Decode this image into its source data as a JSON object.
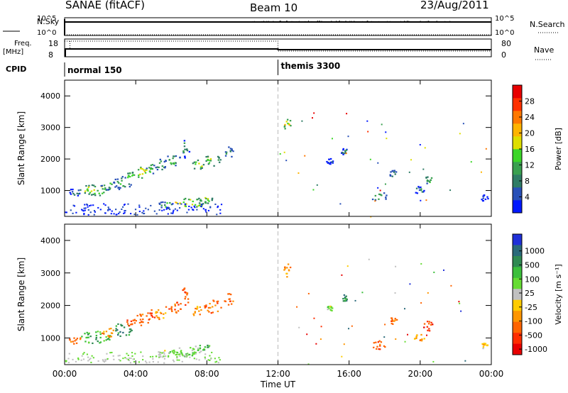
{
  "header": {
    "radar": "SANAE (fitACF)",
    "beam": "Beam 10",
    "date": "23/Aug/2011"
  },
  "strips": {
    "nsky_label": "N.Sky",
    "nsearch_label": "N.Search",
    "freq_label_line1": "Freq.",
    "freq_label_line2": "[MHz]",
    "nave_label": "Nave",
    "cpid_label": "CPID",
    "noise_ticks": [
      "10^5",
      "10^0"
    ],
    "freq_ticks": [
      "18",
      "8"
    ],
    "nave_ticks": [
      "80",
      "0"
    ],
    "cpid_segments": [
      {
        "name": "normal 150",
        "start_hour": 0
      },
      {
        "name": "themis 3300",
        "start_hour": 12
      }
    ]
  },
  "chart_data": [
    {
      "type": "heatmap",
      "name": "power",
      "ylabel": "Slant Range [km]",
      "xlabel": "",
      "xlim": [
        0,
        24
      ],
      "ylim": [
        180,
        4500
      ],
      "x_ticks": [
        "00:00",
        "04:00",
        "08:00",
        "12:00",
        "16:00",
        "20:00",
        "00:00"
      ],
      "y_ticks": [
        1000,
        2000,
        3000,
        4000
      ],
      "colorbar": {
        "label": "Power [dB]",
        "ticks": [
          "4",
          "8",
          "12",
          "16",
          "20",
          "24",
          "28"
        ],
        "colors": [
          "#0018ff",
          "#2850b8",
          "#2f7c66",
          "#3aa050",
          "#3cd628",
          "#dede00",
          "#ffb400",
          "#ff7800",
          "#ff3000",
          "#e80000"
        ]
      },
      "patches": [
        {
          "x": 0.55,
          "y": 970,
          "wx": 0.35,
          "wy": 130,
          "level": 2
        },
        {
          "x": 1.7,
          "y": 1040,
          "wx": 0.9,
          "wy": 190,
          "level": 4
        },
        {
          "x": 2.45,
          "y": 1180,
          "wx": 0.45,
          "wy": 160,
          "level": 3
        },
        {
          "x": 3.2,
          "y": 1260,
          "wx": 0.55,
          "wy": 210,
          "level": 3
        },
        {
          "x": 3.7,
          "y": 1480,
          "wx": 0.35,
          "wy": 130,
          "level": 4
        },
        {
          "x": 4.35,
          "y": 1590,
          "wx": 0.42,
          "wy": 190,
          "level": 5
        },
        {
          "x": 4.85,
          "y": 1720,
          "wx": 0.3,
          "wy": 170,
          "level": 3
        },
        {
          "x": 5.35,
          "y": 1800,
          "wx": 0.3,
          "wy": 220,
          "level": 3
        },
        {
          "x": 6.1,
          "y": 1970,
          "wx": 0.5,
          "wy": 190,
          "level": 3
        },
        {
          "x": 6.75,
          "y": 2330,
          "wx": 0.25,
          "wy": 300,
          "level": 2
        },
        {
          "x": 7.45,
          "y": 1830,
          "wx": 0.35,
          "wy": 160,
          "level": 4
        },
        {
          "x": 8.3,
          "y": 1990,
          "wx": 0.5,
          "wy": 210,
          "level": 4
        },
        {
          "x": 9.2,
          "y": 2210,
          "wx": 0.25,
          "wy": 190,
          "level": 3
        },
        {
          "x": 5.6,
          "y": 560,
          "wx": 0.4,
          "wy": 110,
          "level": 3
        },
        {
          "x": 6.9,
          "y": 610,
          "wx": 1.05,
          "wy": 170,
          "level": 5
        },
        {
          "x": 7.85,
          "y": 720,
          "wx": 0.5,
          "wy": 130,
          "level": 4
        },
        {
          "x": 12.5,
          "y": 3100,
          "wx": 0.2,
          "wy": 220,
          "level": 5
        },
        {
          "x": 15.7,
          "y": 2240,
          "wx": 0.2,
          "wy": 110,
          "level": 2
        },
        {
          "x": 17.65,
          "y": 820,
          "wx": 0.45,
          "wy": 160,
          "level": 3
        },
        {
          "x": 18.45,
          "y": 1550,
          "wx": 0.22,
          "wy": 110,
          "level": 3
        },
        {
          "x": 20.4,
          "y": 1390,
          "wx": 0.28,
          "wy": 160,
          "level": 3
        },
        {
          "x": 19.9,
          "y": 1030,
          "wx": 0.3,
          "wy": 120,
          "level": 2
        },
        {
          "x": 14.9,
          "y": 1940,
          "wx": 0.2,
          "wy": 90,
          "level": 1
        },
        {
          "x": 23.6,
          "y": 780,
          "wx": 0.2,
          "wy": 110,
          "level": 1
        }
      ]
    },
    {
      "type": "heatmap",
      "name": "velocity",
      "ylabel": "Slant Range [km]",
      "xlabel": "Time UT",
      "xlim": [
        0,
        24
      ],
      "ylim": [
        180,
        4500
      ],
      "x_ticks": [
        "00:00",
        "04:00",
        "08:00",
        "12:00",
        "16:00",
        "20:00",
        "00:00"
      ],
      "y_ticks": [
        1000,
        2000,
        3000,
        4000
      ],
      "colorbar": {
        "label": "Velocity [m s⁻¹]",
        "ticks": [
          "1000",
          "500",
          "100",
          "25",
          "-25",
          "-100",
          "-500",
          "-1000"
        ],
        "colors": [
          "#1f30d8",
          "#2a6a7a",
          "#2f8a52",
          "#3cbf3c",
          "#66dc33",
          "#c0c0c0",
          "#ffcc00",
          "#ff9600",
          "#ff6400",
          "#ff2d00",
          "#e80000"
        ]
      },
      "patches": [
        {
          "x": 0.55,
          "y": 970,
          "wx": 0.35,
          "wy": 130,
          "level": 8
        },
        {
          "x": 1.7,
          "y": 1040,
          "wx": 0.9,
          "wy": 190,
          "level": 3
        },
        {
          "x": 2.45,
          "y": 1180,
          "wx": 0.45,
          "wy": 160,
          "level": 7
        },
        {
          "x": 3.2,
          "y": 1260,
          "wx": 0.55,
          "wy": 210,
          "level": 2
        },
        {
          "x": 3.7,
          "y": 1480,
          "wx": 0.35,
          "wy": 130,
          "level": 8
        },
        {
          "x": 4.35,
          "y": 1590,
          "wx": 0.42,
          "wy": 190,
          "level": 8
        },
        {
          "x": 4.85,
          "y": 1720,
          "wx": 0.3,
          "wy": 170,
          "level": 9
        },
        {
          "x": 5.35,
          "y": 1800,
          "wx": 0.3,
          "wy": 220,
          "level": 7
        },
        {
          "x": 6.1,
          "y": 1970,
          "wx": 0.5,
          "wy": 190,
          "level": 8
        },
        {
          "x": 6.75,
          "y": 2330,
          "wx": 0.25,
          "wy": 300,
          "level": 8
        },
        {
          "x": 7.45,
          "y": 1830,
          "wx": 0.35,
          "wy": 160,
          "level": 7
        },
        {
          "x": 8.3,
          "y": 1990,
          "wx": 0.5,
          "wy": 210,
          "level": 8
        },
        {
          "x": 9.2,
          "y": 2210,
          "wx": 0.25,
          "wy": 190,
          "level": 8
        },
        {
          "x": 5.6,
          "y": 560,
          "wx": 0.4,
          "wy": 110,
          "level": 5
        },
        {
          "x": 6.9,
          "y": 610,
          "wx": 1.05,
          "wy": 170,
          "level": 4
        },
        {
          "x": 7.85,
          "y": 720,
          "wx": 0.5,
          "wy": 130,
          "level": 3
        },
        {
          "x": 12.5,
          "y": 3100,
          "wx": 0.2,
          "wy": 220,
          "level": 7
        },
        {
          "x": 15.7,
          "y": 2240,
          "wx": 0.2,
          "wy": 110,
          "level": 2
        },
        {
          "x": 17.65,
          "y": 820,
          "wx": 0.45,
          "wy": 160,
          "level": 8
        },
        {
          "x": 18.45,
          "y": 1550,
          "wx": 0.22,
          "wy": 110,
          "level": 8
        },
        {
          "x": 20.4,
          "y": 1390,
          "wx": 0.28,
          "wy": 160,
          "level": 9
        },
        {
          "x": 19.9,
          "y": 1030,
          "wx": 0.3,
          "wy": 120,
          "level": 7
        },
        {
          "x": 14.9,
          "y": 1940,
          "wx": 0.2,
          "wy": 90,
          "level": 4
        },
        {
          "x": 23.6,
          "y": 780,
          "wx": 0.2,
          "wy": 110,
          "level": 6
        }
      ]
    }
  ]
}
